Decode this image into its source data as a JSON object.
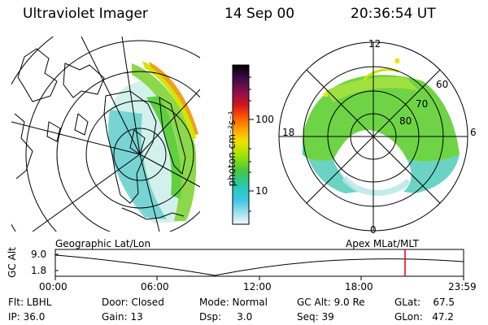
{
  "header": {
    "instrument": "Ultraviolet Imager",
    "date": "14 Sep 00",
    "time": "20:36:54 UT"
  },
  "colorbar": {
    "unit_label": "photon cm⁻²s⁻¹",
    "ticks": [
      "100",
      "10"
    ],
    "colors": [
      "#000000",
      "#2a0a3c",
      "#6e1252",
      "#a01428",
      "#d8141e",
      "#ff5a00",
      "#ffa000",
      "#f0dc00",
      "#a0e600",
      "#46c83c",
      "#28c8b4",
      "#3cc8e6",
      "#a0e6f0",
      "#e6f8fa"
    ]
  },
  "left_panel": {
    "label": "Geographic Lat/Lon"
  },
  "right_panel": {
    "label": "Apex  MLat/MLT",
    "mlt_labels": {
      "top": "12",
      "bottom": "0",
      "left": "18",
      "right": "6"
    },
    "lat_labels": [
      "60",
      "70",
      "80"
    ]
  },
  "altitude_plot": {
    "ylabel": "GC Alt",
    "yticks": [
      "9.0",
      "1.8"
    ],
    "xticks": [
      "00:00",
      "06:00",
      "12:00",
      "18:00",
      "23:59"
    ],
    "marker_color": "#e00000"
  },
  "status": {
    "filter": "Flt: LBHL",
    "ip": "IP: 36.0",
    "door": "Door: Closed",
    "gain": "Gain: 13",
    "mode": "Mode: Normal",
    "dsp": "Dsp:     3.0",
    "gc_alt": "GC Alt: 9.0 Re",
    "seq": "Seq: 39",
    "glat": "GLat:    67.5",
    "glon": "GLon:   47.2"
  }
}
